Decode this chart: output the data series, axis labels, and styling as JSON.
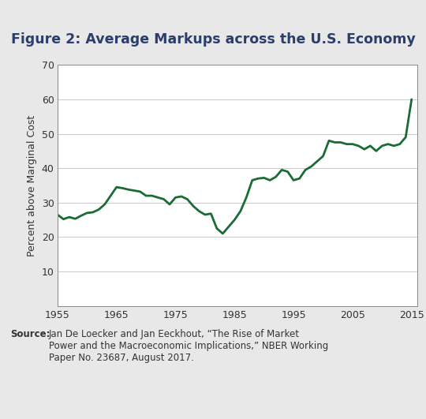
{
  "title": "Figure 2: Average Markups across the U.S. Economy",
  "ylabel": "Percent above Marginal Cost",
  "xlabel": "",
  "xlim": [
    1955,
    2016
  ],
  "ylim": [
    0,
    70
  ],
  "yticks": [
    10,
    20,
    30,
    40,
    50,
    60,
    70
  ],
  "xticks": [
    1955,
    1965,
    1975,
    1985,
    1995,
    2005,
    2015
  ],
  "line_color": "#1a6b35",
  "line_width": 2.0,
  "background_color": "#ffffff",
  "title_color": "#2c3e6b",
  "header_bar_color": "#7fb8cc",
  "outer_bg": "#e8e8e8",
  "source_bold": "Source:",
  "source_rest": " Jan De Loecker and Jan Eeckhout, “The Rise of Market Power and the Macroeconomic Implications,” NBER Working Paper No. 23687, August 2017.",
  "years": [
    1955,
    1956,
    1957,
    1958,
    1959,
    1960,
    1961,
    1962,
    1963,
    1964,
    1965,
    1966,
    1967,
    1968,
    1969,
    1970,
    1971,
    1972,
    1973,
    1974,
    1975,
    1976,
    1977,
    1978,
    1979,
    1980,
    1981,
    1982,
    1983,
    1984,
    1985,
    1986,
    1987,
    1988,
    1989,
    1990,
    1991,
    1992,
    1993,
    1994,
    1995,
    1996,
    1997,
    1998,
    1999,
    2000,
    2001,
    2002,
    2003,
    2004,
    2005,
    2006,
    2007,
    2008,
    2009,
    2010,
    2011,
    2012,
    2013,
    2014,
    2015
  ],
  "values": [
    26.5,
    25.2,
    25.8,
    25.3,
    26.2,
    27.0,
    27.2,
    28.0,
    29.5,
    32.0,
    34.5,
    34.2,
    33.8,
    33.5,
    33.2,
    32.0,
    32.0,
    31.5,
    31.0,
    29.5,
    31.5,
    31.8,
    31.0,
    29.0,
    27.5,
    26.5,
    26.8,
    22.5,
    21.0,
    23.0,
    25.0,
    27.5,
    31.5,
    36.5,
    37.0,
    37.2,
    36.5,
    37.5,
    39.5,
    39.0,
    36.5,
    37.0,
    39.5,
    40.5,
    42.0,
    43.5,
    48.0,
    47.5,
    47.5,
    47.0,
    47.0,
    46.5,
    45.5,
    46.5,
    45.0,
    46.5,
    47.0,
    46.5,
    47.0,
    49.0,
    60.0
  ]
}
